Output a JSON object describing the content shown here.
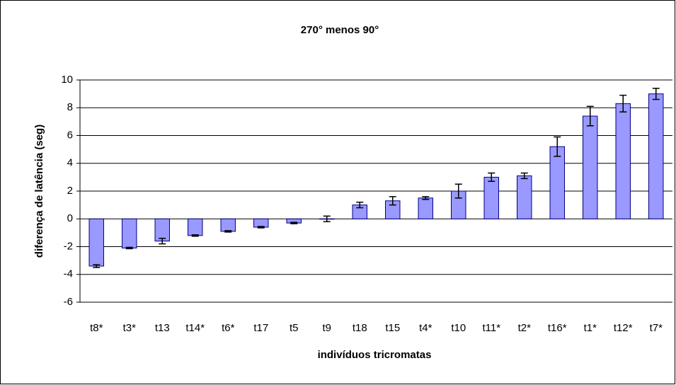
{
  "chart_data": {
    "type": "bar",
    "title": "270° menos 90°",
    "x_label": "indivíduos tricromatas",
    "y_label": "diferença de latência (seg)",
    "categories": [
      "t8*",
      "t3*",
      "t13",
      "t14*",
      "t6*",
      "t17",
      "t5",
      "t9",
      "t18",
      "t15",
      "t4*",
      "t10",
      "t11*",
      "t2*",
      "t16*",
      "t1*",
      "t12*",
      "t7*"
    ],
    "values": [
      -3.4,
      -2.1,
      -1.6,
      -1.2,
      -0.9,
      -0.6,
      -0.3,
      0.0,
      1.0,
      1.3,
      1.5,
      2.0,
      3.0,
      3.1,
      5.2,
      7.4,
      8.3,
      9.0
    ],
    "errors": [
      0.1,
      0.05,
      0.2,
      0.05,
      0.05,
      0.05,
      0.05,
      0.2,
      0.2,
      0.3,
      0.1,
      0.5,
      0.3,
      0.2,
      0.7,
      0.7,
      0.6,
      0.4
    ],
    "color": "#9999ff",
    "ylim": [
      -6,
      10
    ],
    "yticks": [
      -6,
      -4,
      -2,
      0,
      2,
      4,
      6,
      8,
      10
    ],
    "grid": true
  }
}
